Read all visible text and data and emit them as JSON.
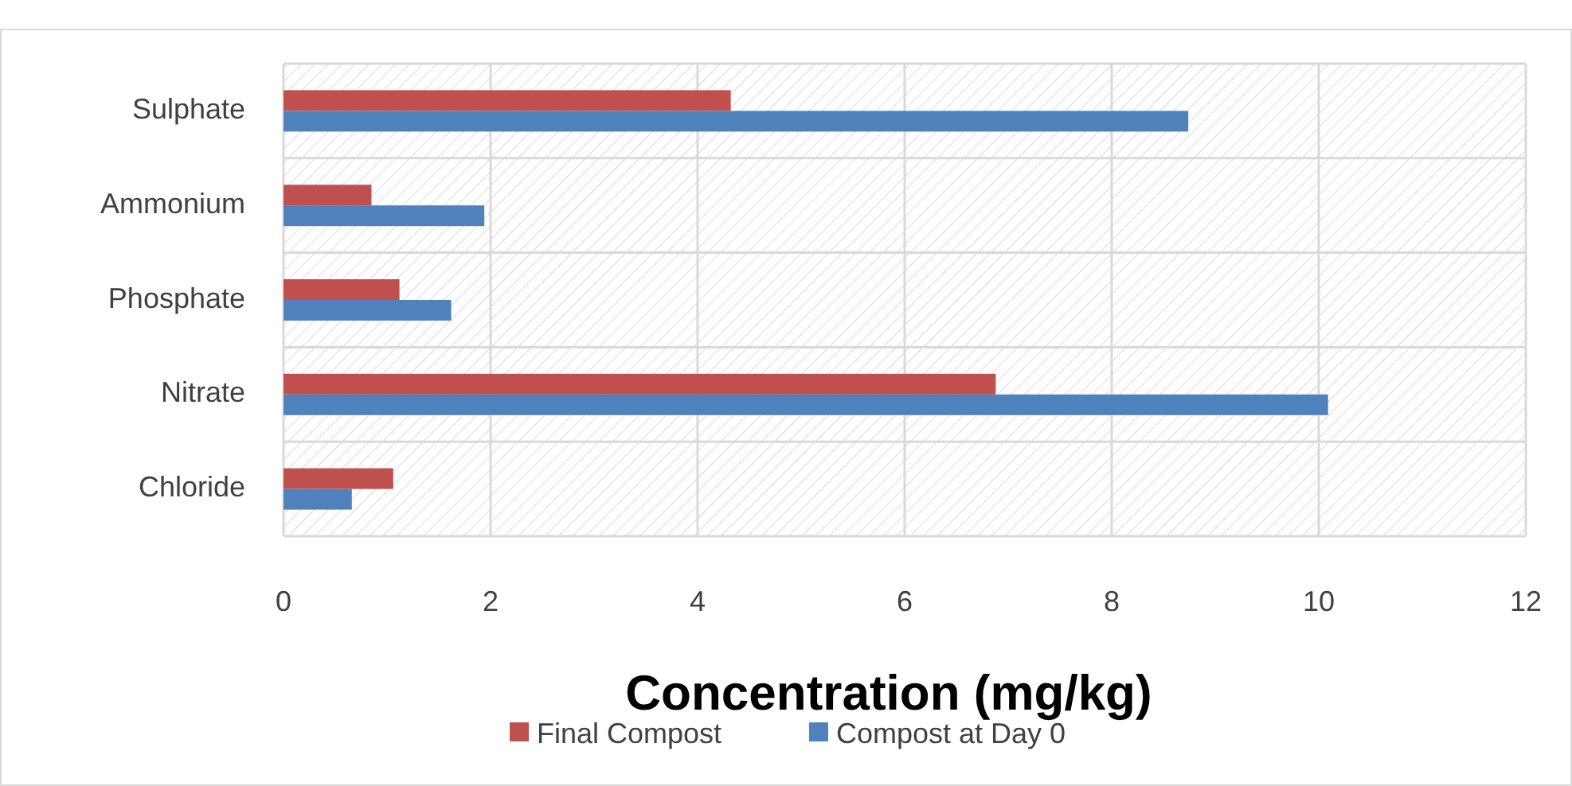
{
  "chart_data": {
    "type": "bar",
    "orientation": "horizontal",
    "xlabel": "Concentration  (mg/kg)",
    "categories": [
      "Sulphate",
      "Ammonium",
      "Phosphate",
      "Nitrate",
      "Chloride"
    ],
    "series": [
      {
        "name": "Final Compost",
        "color": "#c0504d",
        "values": [
          4.32,
          0.85,
          1.12,
          6.88,
          1.06
        ]
      },
      {
        "name": "Compost at Day 0",
        "color": "#4f81bd",
        "values": [
          8.74,
          1.94,
          1.62,
          10.09,
          0.66
        ]
      }
    ],
    "xlim": [
      0,
      12
    ],
    "xticks": [
      0,
      2,
      4,
      6,
      8,
      10,
      12
    ],
    "grid": true,
    "legend": "bottom"
  }
}
